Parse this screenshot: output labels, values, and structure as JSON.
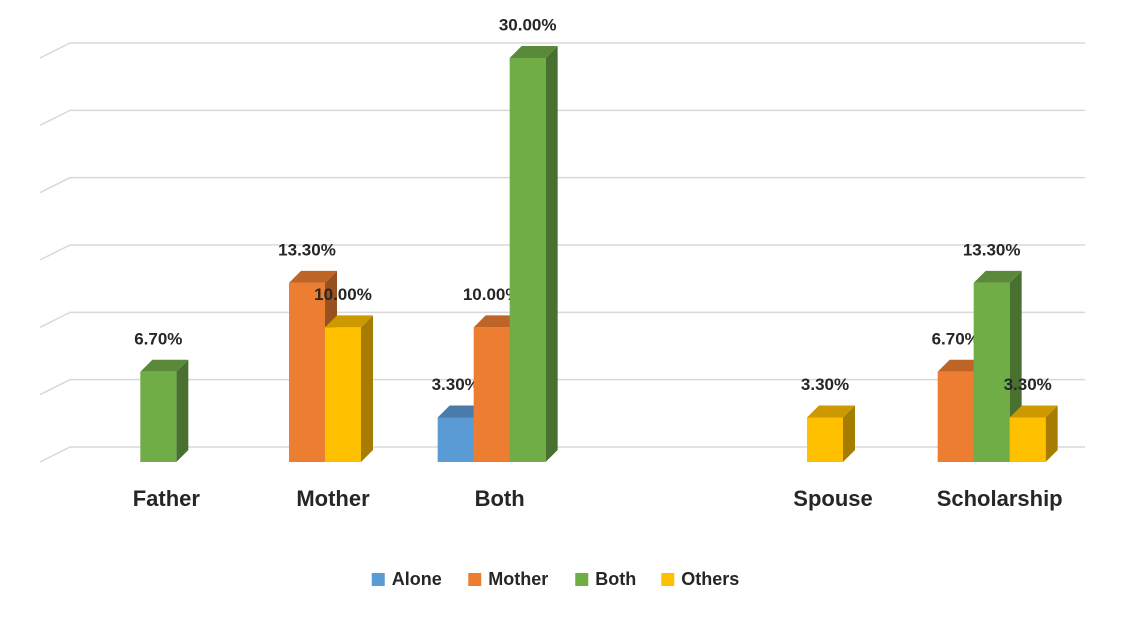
{
  "chart_data": {
    "type": "bar3d",
    "categories": [
      "Father",
      "Mother",
      "Both",
      null,
      "Spouse",
      "Scholarship"
    ],
    "series": [
      {
        "name": "Alone",
        "color": "#5b9bd5",
        "values": [
          null,
          null,
          3.3,
          null,
          null,
          null
        ],
        "value_labels": [
          null,
          null,
          "3.30%",
          null,
          null,
          null
        ]
      },
      {
        "name": "Mother",
        "color": "#ed7d31",
        "values": [
          null,
          13.3,
          10.0,
          null,
          null,
          6.7
        ],
        "value_labels": [
          null,
          "13.30%",
          "10.00%",
          null,
          null,
          "6.70%"
        ]
      },
      {
        "name": "Both",
        "color": "#70ad47",
        "values": [
          6.7,
          null,
          30.0,
          null,
          null,
          13.3
        ],
        "value_labels": [
          "6.70%",
          null,
          "30.00%",
          null,
          null,
          "13.30%"
        ]
      },
      {
        "name": "Others",
        "color": "#ffc000",
        "values": [
          null,
          10.0,
          null,
          null,
          3.3,
          3.3
        ],
        "value_labels": [
          null,
          "10.00%",
          null,
          null,
          "3.30%",
          "3.30%"
        ]
      }
    ],
    "ylim": [
      0,
      30
    ],
    "yticks": [
      0,
      5,
      10,
      15,
      20,
      25,
      30
    ],
    "grid": true,
    "legend": "bottom"
  }
}
